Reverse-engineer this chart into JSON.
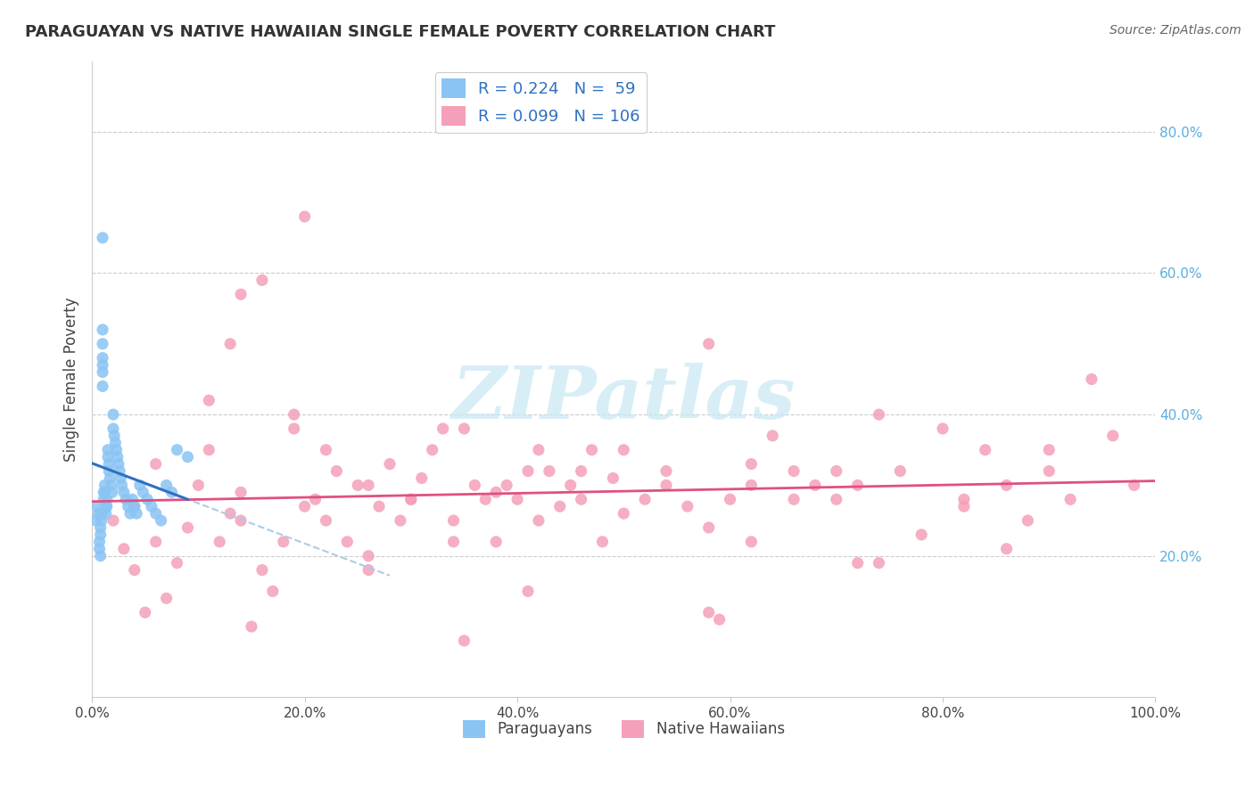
{
  "title": "PARAGUAYAN VS NATIVE HAWAIIAN SINGLE FEMALE POVERTY CORRELATION CHART",
  "source": "Source: ZipAtlas.com",
  "ylabel": "Single Female Poverty",
  "xlim": [
    0.0,
    1.0
  ],
  "ylim": [
    0.0,
    0.9
  ],
  "x_tick_vals": [
    0.0,
    0.2,
    0.4,
    0.6,
    0.8,
    1.0
  ],
  "x_tick_labels": [
    "0.0%",
    "20.0%",
    "40.0%",
    "60.0%",
    "80.0%",
    "100.0%"
  ],
  "y_tick_vals": [
    0.2,
    0.4,
    0.6,
    0.8
  ],
  "y_tick_labels": [
    "20.0%",
    "40.0%",
    "60.0%",
    "80.0%"
  ],
  "r_paraguayan": 0.224,
  "n_paraguayan": 59,
  "r_hawaiian": 0.099,
  "n_hawaiian": 106,
  "paraguayan_color": "#89C4F4",
  "hawaiian_color": "#F4A0B8",
  "trend_paraguayan_dashed_color": "#AACCE8",
  "trend_paraguayan_solid_color": "#3070C0",
  "trend_hawaiian_color": "#E05080",
  "legend_text_color": "#3070C0",
  "y_tick_color": "#5BAEE0",
  "watermark_color": "#C8E8F4",
  "background_color": "#FFFFFF",
  "par_x": [
    0.004,
    0.005,
    0.006,
    0.007,
    0.007,
    0.008,
    0.008,
    0.008,
    0.009,
    0.009,
    0.01,
    0.01,
    0.01,
    0.01,
    0.01,
    0.01,
    0.011,
    0.011,
    0.012,
    0.012,
    0.013,
    0.013,
    0.014,
    0.014,
    0.015,
    0.015,
    0.016,
    0.016,
    0.017,
    0.018,
    0.019,
    0.02,
    0.02,
    0.021,
    0.022,
    0.023,
    0.024,
    0.025,
    0.026,
    0.027,
    0.028,
    0.03,
    0.032,
    0.034,
    0.036,
    0.038,
    0.04,
    0.042,
    0.045,
    0.048,
    0.052,
    0.056,
    0.06,
    0.065,
    0.07,
    0.075,
    0.08,
    0.09,
    0.01
  ],
  "par_y": [
    0.25,
    0.27,
    0.26,
    0.22,
    0.21,
    0.24,
    0.23,
    0.2,
    0.26,
    0.25,
    0.52,
    0.5,
    0.48,
    0.47,
    0.46,
    0.44,
    0.29,
    0.28,
    0.3,
    0.29,
    0.27,
    0.26,
    0.28,
    0.27,
    0.35,
    0.34,
    0.33,
    0.32,
    0.31,
    0.3,
    0.29,
    0.4,
    0.38,
    0.37,
    0.36,
    0.35,
    0.34,
    0.33,
    0.32,
    0.31,
    0.3,
    0.29,
    0.28,
    0.27,
    0.26,
    0.28,
    0.27,
    0.26,
    0.3,
    0.29,
    0.28,
    0.27,
    0.26,
    0.25,
    0.3,
    0.29,
    0.35,
    0.34,
    0.65
  ],
  "haw_x": [
    0.02,
    0.03,
    0.04,
    0.05,
    0.06,
    0.07,
    0.08,
    0.09,
    0.1,
    0.11,
    0.12,
    0.13,
    0.14,
    0.15,
    0.16,
    0.17,
    0.18,
    0.19,
    0.2,
    0.21,
    0.22,
    0.23,
    0.24,
    0.25,
    0.26,
    0.27,
    0.28,
    0.29,
    0.3,
    0.31,
    0.32,
    0.33,
    0.34,
    0.35,
    0.36,
    0.37,
    0.38,
    0.39,
    0.4,
    0.41,
    0.42,
    0.43,
    0.44,
    0.45,
    0.46,
    0.47,
    0.48,
    0.49,
    0.5,
    0.52,
    0.54,
    0.56,
    0.58,
    0.6,
    0.62,
    0.64,
    0.66,
    0.68,
    0.7,
    0.72,
    0.74,
    0.76,
    0.8,
    0.82,
    0.84,
    0.86,
    0.88,
    0.9,
    0.92,
    0.94,
    0.96,
    0.98,
    0.04,
    0.06,
    0.11,
    0.13,
    0.16,
    0.19,
    0.22,
    0.26,
    0.3,
    0.34,
    0.38,
    0.42,
    0.46,
    0.5,
    0.54,
    0.58,
    0.62,
    0.66,
    0.7,
    0.74,
    0.78,
    0.82,
    0.86,
    0.9,
    0.14,
    0.2,
    0.35,
    0.58,
    0.62,
    0.14,
    0.26,
    0.41,
    0.59,
    0.72
  ],
  "haw_y": [
    0.25,
    0.21,
    0.18,
    0.12,
    0.22,
    0.14,
    0.19,
    0.24,
    0.3,
    0.35,
    0.22,
    0.26,
    0.29,
    0.1,
    0.18,
    0.15,
    0.22,
    0.38,
    0.68,
    0.28,
    0.25,
    0.32,
    0.22,
    0.3,
    0.18,
    0.27,
    0.33,
    0.25,
    0.28,
    0.31,
    0.35,
    0.38,
    0.25,
    0.38,
    0.3,
    0.28,
    0.22,
    0.3,
    0.28,
    0.32,
    0.35,
    0.32,
    0.27,
    0.3,
    0.28,
    0.35,
    0.22,
    0.31,
    0.35,
    0.28,
    0.32,
    0.27,
    0.5,
    0.28,
    0.3,
    0.37,
    0.32,
    0.3,
    0.28,
    0.3,
    0.4,
    0.32,
    0.38,
    0.28,
    0.35,
    0.3,
    0.25,
    0.32,
    0.28,
    0.45,
    0.37,
    0.3,
    0.27,
    0.33,
    0.42,
    0.5,
    0.59,
    0.4,
    0.35,
    0.3,
    0.28,
    0.22,
    0.29,
    0.25,
    0.32,
    0.26,
    0.3,
    0.24,
    0.33,
    0.28,
    0.32,
    0.19,
    0.23,
    0.27,
    0.21,
    0.35,
    0.57,
    0.27,
    0.08,
    0.12,
    0.22,
    0.25,
    0.2,
    0.15,
    0.11,
    0.19
  ]
}
